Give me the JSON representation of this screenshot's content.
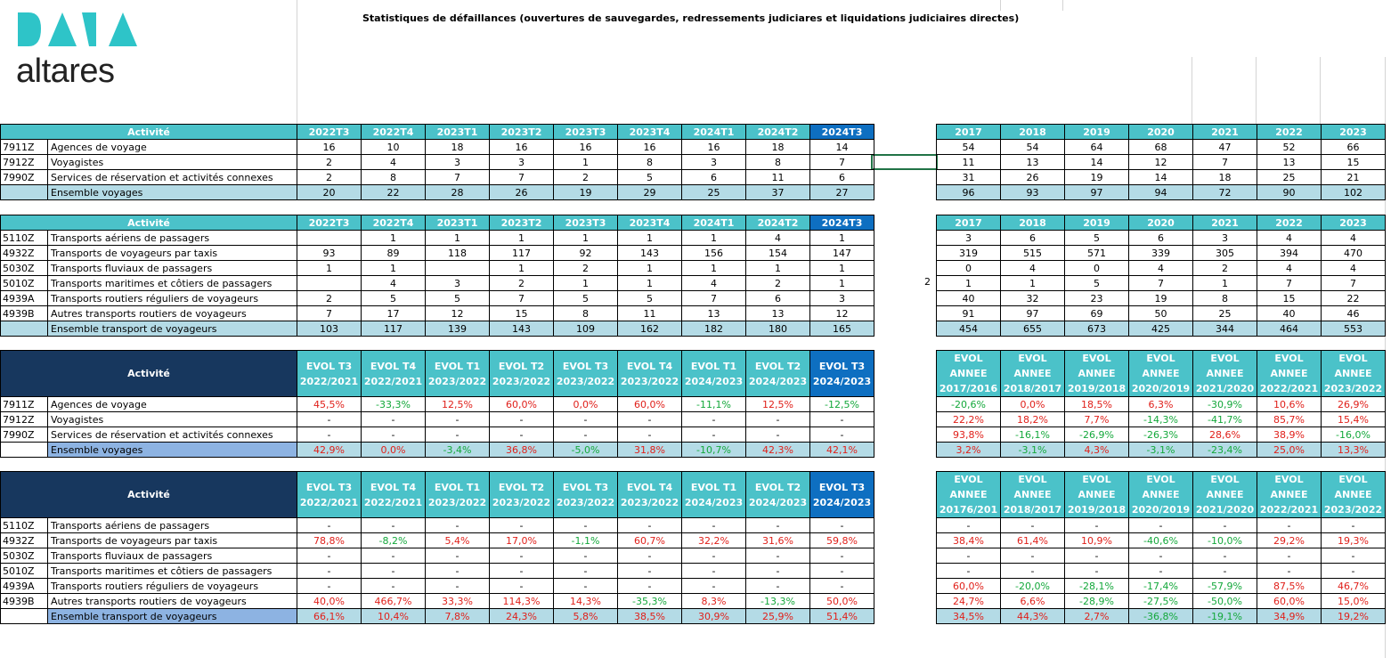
{
  "logo": {
    "top_text": "DATA",
    "bottom_text": "altares"
  },
  "title": "Statistiques de défaillances (ouvertures de sauvegardes, redressements judiciares et liquidations judiciaires directes)",
  "side_value": "2",
  "colors": {
    "header_teal": "#4bc2c9",
    "header_last": "#0e6fc1",
    "header_dark": "#17375e",
    "total_row": "#b4dbe6",
    "total_label": "#8db3e2",
    "positive_red": "#e0201a",
    "negative_green": "#14a83b"
  },
  "t1": {
    "header": [
      "Activité",
      "2022T3",
      "2022T4",
      "2023T1",
      "2023T2",
      "2023T3",
      "2023T4",
      "2024T1",
      "2024T2",
      "2024T3"
    ],
    "rows": [
      [
        "7911Z",
        "Agences de voyage",
        "16",
        "10",
        "18",
        "16",
        "16",
        "16",
        "16",
        "18",
        "14"
      ],
      [
        "7912Z",
        "Voyagistes",
        "2",
        "4",
        "3",
        "3",
        "1",
        "8",
        "3",
        "8",
        "7"
      ],
      [
        "7990Z",
        "Services de réservation et activités connexes",
        "2",
        "8",
        "7",
        "7",
        "2",
        "5",
        "6",
        "11",
        "6"
      ]
    ],
    "total": [
      "",
      "Ensemble voyages",
      "20",
      "22",
      "28",
      "26",
      "19",
      "29",
      "25",
      "37",
      "27"
    ]
  },
  "t1r": {
    "header": [
      "2017",
      "2018",
      "2019",
      "2020",
      "2021",
      "2022",
      "2023"
    ],
    "rows": [
      [
        "54",
        "54",
        "64",
        "68",
        "47",
        "52",
        "66"
      ],
      [
        "11",
        "13",
        "14",
        "12",
        "7",
        "13",
        "15"
      ],
      [
        "31",
        "26",
        "19",
        "14",
        "18",
        "25",
        "21"
      ]
    ],
    "total": [
      "96",
      "93",
      "97",
      "94",
      "72",
      "90",
      "102"
    ]
  },
  "t2": {
    "header": [
      "Activité",
      "2022T3",
      "2022T4",
      "2023T1",
      "2023T2",
      "2023T3",
      "2023T4",
      "2024T1",
      "2024T2",
      "2024T3"
    ],
    "rows": [
      [
        "5110Z",
        "Transports aériens de passagers",
        "",
        "1",
        "1",
        "1",
        "1",
        "1",
        "1",
        "4",
        "1"
      ],
      [
        "4932Z",
        "Transports de voyageurs par taxis",
        "93",
        "89",
        "118",
        "117",
        "92",
        "143",
        "156",
        "154",
        "147"
      ],
      [
        "5030Z",
        "Transports fluviaux de passagers",
        "1",
        "1",
        "",
        "1",
        "2",
        "1",
        "1",
        "1",
        "1"
      ],
      [
        "5010Z",
        "Transports maritimes et côtiers de passagers",
        "",
        "4",
        "3",
        "2",
        "1",
        "1",
        "4",
        "2",
        "1"
      ],
      [
        "4939A",
        "Transports routiers réguliers de voyageurs",
        "2",
        "5",
        "5",
        "7",
        "5",
        "5",
        "7",
        "6",
        "3"
      ],
      [
        "4939B",
        "Autres transports routiers de voyageurs",
        "7",
        "17",
        "12",
        "15",
        "8",
        "11",
        "13",
        "13",
        "12"
      ]
    ],
    "total": [
      "",
      "Ensemble transport de voyageurs",
      "103",
      "117",
      "139",
      "143",
      "109",
      "162",
      "182",
      "180",
      "165"
    ]
  },
  "t2r": {
    "header": [
      "2017",
      "2018",
      "2019",
      "2020",
      "2021",
      "2022",
      "2023"
    ],
    "rows": [
      [
        "3",
        "6",
        "5",
        "6",
        "3",
        "4",
        "4"
      ],
      [
        "319",
        "515",
        "571",
        "339",
        "305",
        "394",
        "470"
      ],
      [
        "0",
        "4",
        "0",
        "4",
        "2",
        "4",
        "4"
      ],
      [
        "1",
        "1",
        "5",
        "7",
        "1",
        "7",
        "7"
      ],
      [
        "40",
        "32",
        "23",
        "19",
        "8",
        "15",
        "22"
      ],
      [
        "91",
        "97",
        "69",
        "50",
        "25",
        "40",
        "46"
      ]
    ],
    "total": [
      "454",
      "655",
      "673",
      "425",
      "344",
      "464",
      "553"
    ]
  },
  "t3": {
    "header": [
      "Activité",
      "EVOL T3 2022/2021",
      "EVOL T4 2022/2021",
      "EVOL T1 2023/2022",
      "EVOL T2 2023/2022",
      "EVOL T3 2023/2022",
      "EVOL T4 2023/2022",
      "EVOL T1 2024/2023",
      "EVOL T2 2024/2023",
      "EVOL T3 2024/2023"
    ],
    "rows": [
      [
        "7911Z",
        "Agences de voyage",
        "45,5%",
        "-33,3%",
        "12,5%",
        "60,0%",
        "0,0%",
        "60,0%",
        "-11,1%",
        "12,5%",
        "-12,5%"
      ],
      [
        "7912Z",
        "Voyagistes",
        "-",
        "-",
        "-",
        "-",
        "-",
        "-",
        "-",
        "-",
        "-"
      ],
      [
        "7990Z",
        "Services de réservation et activités connexes",
        "-",
        "-",
        "-",
        "-",
        "-",
        "-",
        "-",
        "-",
        "-"
      ]
    ],
    "total": [
      "",
      "Ensemble voyages",
      "42,9%",
      "0,0%",
      "-3,4%",
      "36,8%",
      "-5,0%",
      "31,8%",
      "-10,7%",
      "42,3%",
      "42,1%"
    ]
  },
  "t3r": {
    "header": [
      "EVOL ANNEE 2017/2016",
      "EVOL ANNEE 2018/2017",
      "EVOL ANNEE 2019/2018",
      "EVOL ANNEE 2020/2019",
      "EVOL ANNEE 2021/2020",
      "EVOL ANNEE 2022/2021",
      "EVOL ANNEE 2023/2022"
    ],
    "rows": [
      [
        "-20,6%",
        "0,0%",
        "18,5%",
        "6,3%",
        "-30,9%",
        "10,6%",
        "26,9%"
      ],
      [
        "22,2%",
        "18,2%",
        "7,7%",
        "-14,3%",
        "-41,7%",
        "85,7%",
        "15,4%"
      ],
      [
        "93,8%",
        "-16,1%",
        "-26,9%",
        "-26,3%",
        "28,6%",
        "38,9%",
        "-16,0%"
      ]
    ],
    "total": [
      "3,2%",
      "-3,1%",
      "4,3%",
      "-3,1%",
      "-23,4%",
      "25,0%",
      "13,3%"
    ]
  },
  "t4": {
    "header": [
      "Activité",
      "EVOL T3 2022/2021",
      "EVOL T4 2022/2021",
      "EVOL T1 2023/2022",
      "EVOL T2 2023/2022",
      "EVOL T3 2023/2022",
      "EVOL T4 2023/2022",
      "EVOL T1 2024/2023",
      "EVOL T2 2024/2023",
      "EVOL T3 2024/2023"
    ],
    "rows": [
      [
        "5110Z",
        "Transports aériens de passagers",
        "-",
        "-",
        "-",
        "-",
        "-",
        "-",
        "-",
        "-",
        "-"
      ],
      [
        "4932Z",
        "Transports de voyageurs par taxis",
        "78,8%",
        "-8,2%",
        "5,4%",
        "17,0%",
        "-1,1%",
        "60,7%",
        "32,2%",
        "31,6%",
        "59,8%"
      ],
      [
        "5030Z",
        "Transports fluviaux de passagers",
        "-",
        "-",
        "-",
        "-",
        "-",
        "-",
        "-",
        "-",
        "-"
      ],
      [
        "5010Z",
        "Transports maritimes et côtiers de passagers",
        "-",
        "-",
        "-",
        "-",
        "-",
        "-",
        "-",
        "-",
        "-"
      ],
      [
        "4939A",
        "Transports routiers réguliers de voyageurs",
        "-",
        "-",
        "-",
        "-",
        "-",
        "-",
        "-",
        "-",
        "-"
      ],
      [
        "4939B",
        "Autres transports routiers de voyageurs",
        "40,0%",
        "466,7%",
        "33,3%",
        "114,3%",
        "14,3%",
        "-35,3%",
        "8,3%",
        "-13,3%",
        "50,0%"
      ]
    ],
    "total": [
      "",
      "Ensemble transport de voyageurs",
      "66,1%",
      "10,4%",
      "7,8%",
      "24,3%",
      "5,8%",
      "38,5%",
      "30,9%",
      "25,9%",
      "51,4%"
    ]
  },
  "t4r": {
    "header": [
      "EVOL ANNEE 20176/201",
      "EVOL ANNEE 2018/2017",
      "EVOL ANNEE 2019/2018",
      "EVOL ANNEE 2020/2019",
      "EVOL ANNEE 2021/2020",
      "EVOL ANNEE 2022/2021",
      "EVOL ANNEE 2023/2022"
    ],
    "rows": [
      [
        "-",
        "-",
        "-",
        "-",
        "-",
        "-",
        "-"
      ],
      [
        "38,4%",
        "61,4%",
        "10,9%",
        "-40,6%",
        "-10,0%",
        "29,2%",
        "19,3%"
      ],
      [
        "-",
        "-",
        "-",
        "-",
        "-",
        "-",
        "-"
      ],
      [
        "-",
        "-",
        "-",
        "-",
        "-",
        "-",
        "-"
      ],
      [
        "60,0%",
        "-20,0%",
        "-28,1%",
        "-17,4%",
        "-57,9%",
        "87,5%",
        "46,7%"
      ],
      [
        "24,7%",
        "6,6%",
        "-28,9%",
        "-27,5%",
        "-50,0%",
        "60,0%",
        "15,0%"
      ]
    ],
    "total": [
      "34,5%",
      "44,3%",
      "2,7%",
      "-36,8%",
      "-19,1%",
      "34,9%",
      "19,2%"
    ]
  }
}
